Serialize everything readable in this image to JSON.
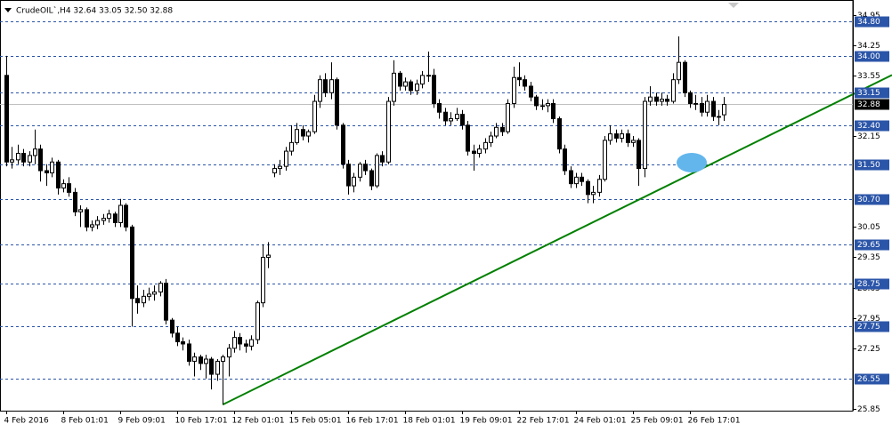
{
  "chart_data": {
    "type": "candlestick",
    "title": "CrudeOIL`,H4  32.64 33.05 32.50 32.88",
    "categories": [
      "4 Feb 2016",
      null,
      null,
      null,
      null,
      null,
      null,
      null,
      null,
      null,
      "8 Feb 01:01",
      null,
      null,
      null,
      null,
      null,
      null,
      null,
      null,
      null,
      "9 Feb 09:01",
      null,
      null,
      null,
      null,
      null,
      null,
      null,
      null,
      null,
      "10 Feb 17:01",
      null,
      null,
      null,
      null,
      null,
      null,
      null,
      null,
      null,
      "12 Feb 01:01",
      null,
      null,
      null,
      null,
      null,
      null,
      null,
      null,
      null,
      "15 Feb 05:01",
      null,
      null,
      null,
      null,
      null,
      null,
      null,
      null,
      null,
      "16 Feb 17:01",
      null,
      null,
      null,
      null,
      null,
      null,
      null,
      null,
      null,
      "18 Feb 01:01",
      null,
      null,
      null,
      null,
      null,
      null,
      null,
      null,
      null,
      "19 Feb 09:01",
      null,
      null,
      null,
      null,
      null,
      null,
      null,
      null,
      null,
      "22 Feb 17:01",
      null,
      null,
      null,
      null,
      null,
      null,
      null,
      null,
      null,
      "24 Feb 01:01",
      null,
      null,
      null,
      null,
      null,
      null,
      null,
      null,
      null,
      "25 Feb 09:01",
      null,
      null,
      null,
      null,
      null,
      null,
      null,
      null,
      null,
      "26 Feb 17:01",
      null,
      null,
      null,
      null,
      null,
      null
    ],
    "open": [
      33.55,
      31.55,
      31.6,
      31.75,
      31.55,
      31.7,
      31.85,
      31.35,
      31.3,
      31.55,
      30.95,
      31.05,
      30.85,
      30.4,
      30.45,
      30.05,
      30.1,
      30.2,
      30.25,
      30.35,
      30.15,
      30.55,
      30.05,
      28.4,
      28.3,
      28.45,
      28.5,
      28.55,
      28.75,
      27.9,
      27.6,
      27.4,
      27.35,
      26.95,
      27.05,
      26.9,
      27.0,
      26.65,
      26.95,
      27.05,
      27.25,
      27.5,
      27.35,
      27.3,
      27.45,
      28.3,
      29.35,
      31.3,
      31.4,
      31.45,
      31.8,
      32.0,
      32.3,
      32.15,
      32.25,
      32.95,
      33.45,
      33.15,
      33.45,
      32.4,
      31.5,
      31.0,
      31.2,
      31.5,
      31.35,
      31.0,
      31.7,
      31.55,
      32.95,
      33.6,
      33.3,
      33.4,
      33.2,
      33.35,
      33.55,
      33.55,
      32.9,
      32.7,
      32.5,
      32.55,
      32.65,
      32.4,
      31.8,
      31.75,
      31.85,
      32.0,
      32.15,
      32.35,
      32.25,
      32.9,
      33.5,
      33.45,
      33.3,
      33.05,
      32.85,
      32.85,
      32.9,
      32.55,
      31.85,
      31.35,
      31.05,
      31.2,
      31.1,
      30.8,
      30.85,
      31.15,
      32.05,
      32.2,
      32.1,
      32.2,
      32.0,
      32.05,
      31.4,
      32.95,
      33.05,
      32.95,
      33.0,
      32.95,
      33.45,
      33.85,
      33.15,
      32.9,
      32.9,
      32.7,
      32.95,
      32.6,
      32.64
    ],
    "high": [
      34.0,
      31.9,
      31.95,
      31.85,
      31.8,
      32.3,
      31.95,
      31.5,
      31.65,
      31.6,
      31.15,
      31.2,
      30.95,
      30.55,
      30.5,
      30.2,
      30.3,
      30.35,
      30.45,
      30.4,
      30.7,
      30.6,
      30.1,
      28.7,
      28.6,
      28.65,
      28.7,
      28.8,
      28.85,
      27.95,
      27.75,
      27.5,
      27.45,
      27.15,
      27.1,
      27.1,
      27.05,
      27.0,
      27.1,
      27.35,
      27.65,
      27.6,
      27.45,
      27.55,
      28.35,
      29.65,
      29.7,
      31.5,
      31.6,
      31.9,
      32.4,
      32.45,
      32.4,
      32.3,
      33.1,
      33.55,
      33.6,
      33.85,
      33.5,
      32.45,
      31.6,
      31.3,
      31.55,
      31.6,
      31.4,
      31.75,
      31.8,
      33.05,
      33.9,
      33.65,
      33.5,
      33.45,
      33.45,
      33.65,
      34.1,
      33.7,
      33.0,
      32.8,
      32.7,
      32.8,
      32.75,
      32.5,
      31.95,
      31.95,
      32.1,
      32.25,
      32.45,
      32.45,
      33.0,
      33.75,
      33.85,
      33.55,
      33.4,
      33.1,
      33.0,
      33.0,
      33.0,
      32.6,
      31.95,
      31.45,
      31.3,
      31.3,
      31.15,
      31.0,
      31.25,
      32.15,
      32.4,
      32.3,
      32.3,
      32.3,
      32.15,
      32.1,
      33.05,
      33.3,
      33.15,
      33.15,
      33.1,
      33.6,
      34.45,
      33.9,
      33.2,
      33.1,
      33.05,
      33.1,
      33.05,
      32.75,
      33.05
    ],
    "low": [
      31.45,
      31.4,
      31.5,
      31.45,
      31.45,
      31.5,
      31.1,
      31.0,
      31.2,
      30.8,
      30.85,
      30.75,
      30.3,
      30.05,
      29.95,
      29.95,
      30.0,
      30.1,
      30.15,
      30.05,
      30.05,
      29.95,
      27.75,
      28.05,
      28.2,
      28.35,
      28.35,
      28.45,
      27.8,
      27.5,
      27.3,
      27.2,
      26.85,
      26.6,
      26.75,
      26.55,
      26.3,
      26.5,
      25.95,
      26.6,
      27.15,
      27.2,
      27.15,
      27.2,
      27.35,
      28.2,
      29.1,
      31.2,
      31.25,
      31.35,
      31.7,
      31.95,
      32.05,
      32.0,
      32.2,
      32.8,
      33.05,
      33.0,
      32.3,
      31.4,
      30.8,
      30.85,
      31.1,
      31.25,
      30.9,
      30.95,
      31.45,
      31.5,
      32.85,
      33.2,
      33.2,
      33.1,
      33.1,
      33.25,
      33.4,
      32.8,
      32.55,
      32.4,
      32.4,
      32.5,
      32.3,
      31.7,
      31.35,
      31.65,
      31.75,
      31.9,
      32.1,
      32.15,
      32.2,
      32.8,
      33.3,
      33.2,
      32.95,
      32.75,
      32.75,
      32.7,
      32.45,
      31.75,
      31.25,
      30.95,
      30.95,
      31.0,
      30.6,
      30.6,
      30.75,
      31.1,
      31.95,
      32.0,
      32.0,
      31.9,
      31.9,
      31.0,
      31.2,
      32.85,
      32.85,
      32.85,
      32.85,
      32.9,
      33.35,
      33.05,
      32.8,
      32.75,
      32.6,
      32.6,
      32.5,
      32.4,
      32.5
    ],
    "close": [
      31.55,
      31.6,
      31.75,
      31.55,
      31.7,
      31.85,
      31.35,
      31.3,
      31.55,
      30.95,
      31.05,
      30.85,
      30.4,
      30.45,
      30.05,
      30.1,
      30.2,
      30.25,
      30.35,
      30.15,
      30.55,
      30.05,
      28.4,
      28.3,
      28.45,
      28.5,
      28.55,
      28.75,
      27.9,
      27.6,
      27.4,
      27.35,
      26.95,
      27.05,
      26.9,
      27.0,
      26.65,
      26.95,
      27.05,
      27.25,
      27.5,
      27.35,
      27.3,
      27.45,
      28.3,
      29.35,
      29.4,
      31.4,
      31.45,
      31.8,
      32.0,
      32.3,
      32.15,
      32.25,
      32.95,
      33.45,
      33.15,
      33.45,
      32.4,
      31.5,
      31.0,
      31.2,
      31.5,
      31.35,
      31.0,
      31.7,
      31.55,
      32.95,
      33.6,
      33.3,
      33.4,
      33.2,
      33.35,
      33.55,
      33.55,
      32.9,
      32.7,
      32.5,
      32.55,
      32.65,
      32.4,
      31.8,
      31.75,
      31.85,
      32.0,
      32.15,
      32.35,
      32.25,
      32.9,
      33.5,
      33.45,
      33.3,
      33.05,
      32.85,
      32.85,
      32.9,
      32.55,
      31.85,
      31.35,
      31.05,
      31.2,
      31.1,
      30.8,
      30.85,
      31.15,
      32.05,
      32.2,
      32.1,
      32.2,
      32.0,
      32.05,
      31.4,
      32.95,
      33.05,
      32.95,
      33.0,
      32.95,
      33.45,
      33.85,
      33.15,
      32.9,
      32.9,
      32.7,
      32.95,
      32.6,
      32.6,
      32.88
    ],
    "up_color": "#ffffff",
    "down_color": "#000000",
    "ylim": [
      25.81,
      35.29
    ],
    "yticks": [
      34.95,
      34.25,
      33.55,
      32.15,
      30.05,
      29.35,
      28.65,
      27.95,
      27.25,
      25.85
    ],
    "levels": [
      {
        "value": 34.8,
        "label": "34.80"
      },
      {
        "value": 34,
        "label": "34.00"
      },
      33.15,
      {
        "value": 32.4,
        "label": "32.40"
      },
      {
        "value": 31.5,
        "label": "31.50"
      },
      {
        "value": 30.7,
        "label": "30.70"
      },
      29.65,
      28.75,
      27.75,
      26.55
    ],
    "level_color": "#2b55a8",
    "current_price": 32.88,
    "trend_line": {
      "color": "#008000",
      "x": [
        38,
        126
      ],
      "y": [
        25.95,
        31.65
      ]
    },
    "grid": false
  }
}
